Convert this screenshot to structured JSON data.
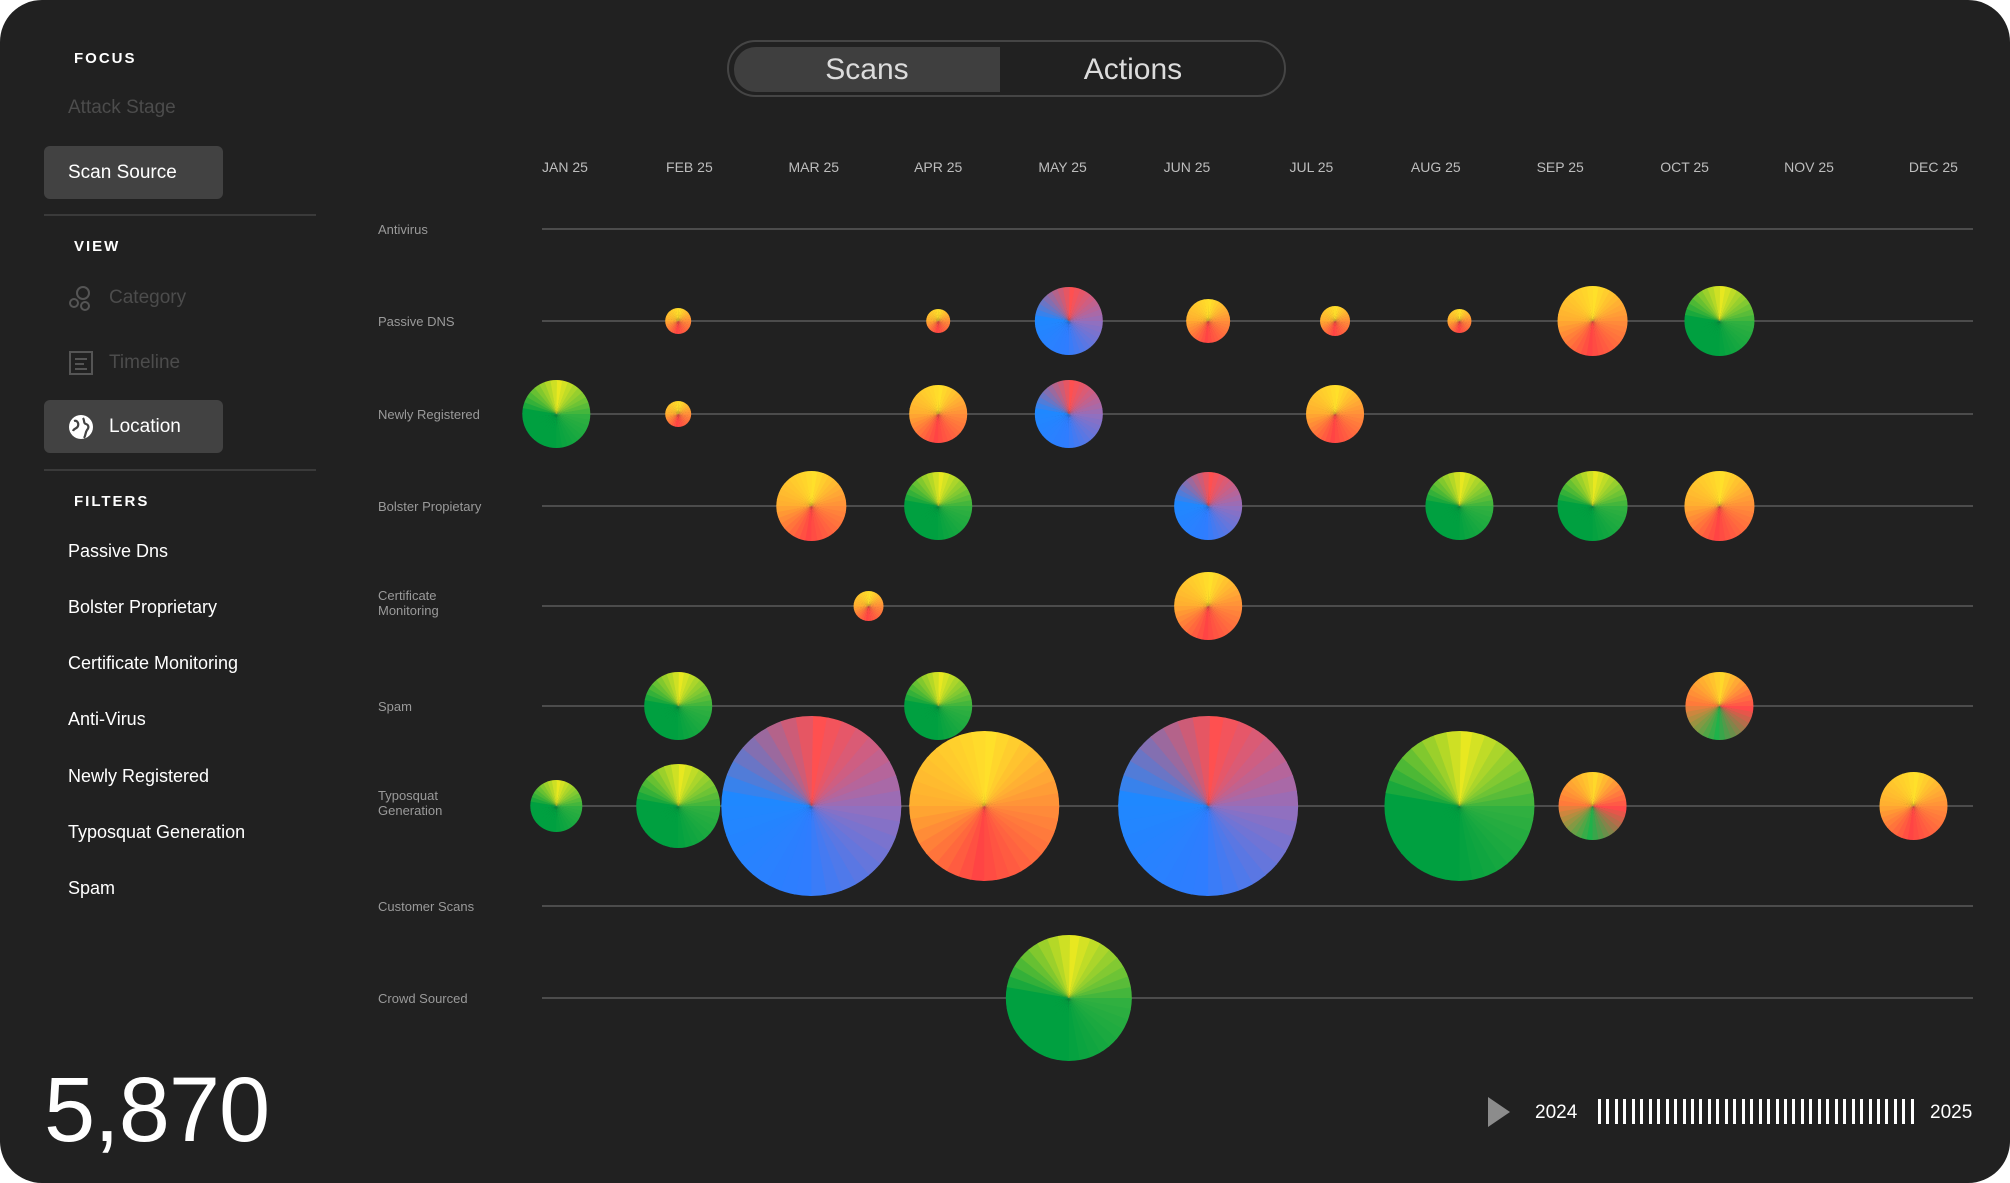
{
  "toggle": {
    "options": [
      "Scans",
      "Actions"
    ],
    "selected": "Scans"
  },
  "sidebar": {
    "focus": {
      "title": "FOCUS",
      "items": [
        {
          "label": "Attack Stage",
          "active": false
        },
        {
          "label": "Scan Source",
          "active": true
        }
      ]
    },
    "view": {
      "title": "VIEW",
      "items": [
        {
          "label": "Category",
          "icon": "bubbles-icon",
          "active": false
        },
        {
          "label": "Timeline",
          "icon": "list-icon",
          "active": false
        },
        {
          "label": "Location",
          "icon": "globe-icon",
          "active": true
        }
      ]
    },
    "filters": {
      "title": "FILTERS",
      "items": [
        "Passive Dns",
        "Bolster Proprietary",
        "Certificate Monitoring",
        "Anti-Virus",
        "Newly Registered",
        "Typosquat Generation",
        "Spam"
      ]
    }
  },
  "total": "5,870",
  "timeline": {
    "start": "2024",
    "end": "2025",
    "ticks": 38
  },
  "colors": {
    "background": "#212121",
    "active": "#424242",
    "grid": "#5a5a5a"
  },
  "chart_data": {
    "type": "bubble",
    "x": [
      "JAN 25",
      "FEB 25",
      "MAR 25",
      "APR 25",
      "MAY 25",
      "JUN 25",
      "JUL 25",
      "AUG 25",
      "SEP 25",
      "OCT 25",
      "NOV 25",
      "DEC 25"
    ],
    "rows": [
      {
        "label": "Antivirus",
        "points": []
      },
      {
        "label": "Passive DNS",
        "points": [
          {
            "x": 0.91,
            "size": 13,
            "palette": "orange"
          },
          {
            "x": 3.0,
            "size": 12,
            "palette": "orange"
          },
          {
            "x": 4.05,
            "size": 34,
            "palette": "blue"
          },
          {
            "x": 5.17,
            "size": 22,
            "palette": "orange"
          },
          {
            "x": 6.19,
            "size": 15,
            "palette": "orange"
          },
          {
            "x": 7.19,
            "size": 12,
            "palette": "orange"
          },
          {
            "x": 8.26,
            "size": 35,
            "palette": "orange"
          },
          {
            "x": 9.28,
            "size": 35,
            "palette": "green"
          }
        ]
      },
      {
        "label": "Newly Registered",
        "points": [
          {
            "x": -0.07,
            "size": 34,
            "palette": "green"
          },
          {
            "x": 0.91,
            "size": 13,
            "palette": "orange"
          },
          {
            "x": 3.0,
            "size": 29,
            "palette": "orange"
          },
          {
            "x": 4.05,
            "size": 34,
            "palette": "blue"
          },
          {
            "x": 6.19,
            "size": 29,
            "palette": "orange"
          }
        ]
      },
      {
        "label": "Bolster Propietary",
        "points": [
          {
            "x": 1.98,
            "size": 35,
            "palette": "orange"
          },
          {
            "x": 3.0,
            "size": 34,
            "palette": "green"
          },
          {
            "x": 5.17,
            "size": 34,
            "palette": "blue"
          },
          {
            "x": 7.19,
            "size": 34,
            "palette": "green"
          },
          {
            "x": 8.26,
            "size": 35,
            "palette": "green"
          },
          {
            "x": 9.28,
            "size": 35,
            "palette": "orange"
          }
        ]
      },
      {
        "label": "Certificate Monitoring",
        "points": [
          {
            "x": 2.44,
            "size": 15,
            "palette": "orange"
          },
          {
            "x": 5.17,
            "size": 34,
            "palette": "orange"
          }
        ]
      },
      {
        "label": "Spam",
        "points": [
          {
            "x": 0.91,
            "size": 34,
            "palette": "green"
          },
          {
            "x": 3.0,
            "size": 34,
            "palette": "green"
          },
          {
            "x": 9.28,
            "size": 34,
            "palette": "multi"
          }
        ]
      },
      {
        "label": "Typosquat Generation",
        "points": [
          {
            "x": -0.07,
            "size": 26,
            "palette": "green"
          },
          {
            "x": 0.91,
            "size": 42,
            "palette": "green"
          },
          {
            "x": 1.98,
            "size": 90,
            "palette": "blue"
          },
          {
            "x": 3.37,
            "size": 75,
            "palette": "orange"
          },
          {
            "x": 5.17,
            "size": 90,
            "palette": "blue"
          },
          {
            "x": 7.19,
            "size": 75,
            "palette": "green"
          },
          {
            "x": 8.26,
            "size": 34,
            "palette": "multi"
          },
          {
            "x": 10.84,
            "size": 34,
            "palette": "orange"
          }
        ]
      },
      {
        "label": "Customer Scans",
        "points": []
      },
      {
        "label": "Crowd Sourced",
        "points": [
          {
            "x": 4.05,
            "size": 63,
            "palette": "green"
          }
        ]
      }
    ]
  }
}
